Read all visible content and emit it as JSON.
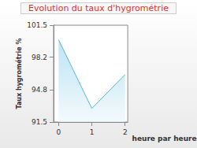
{
  "chart_data": {
    "type": "line",
    "title": "Evolution du taux d'hygrométrie",
    "x_label": "heure par heure",
    "y_label": "Taux hygrométrie %",
    "x": [
      0,
      1,
      2
    ],
    "values": [
      100.0,
      92.9,
      96.4
    ],
    "color": "#5ab4d6",
    "xlim": [
      -0.15,
      2.08
    ],
    "xticks": [
      0,
      1,
      2
    ],
    "ylim": [
      91.5,
      101.5
    ],
    "yticks": [
      91.5,
      94.8,
      98.2,
      101.5
    ],
    "grid": false
  }
}
